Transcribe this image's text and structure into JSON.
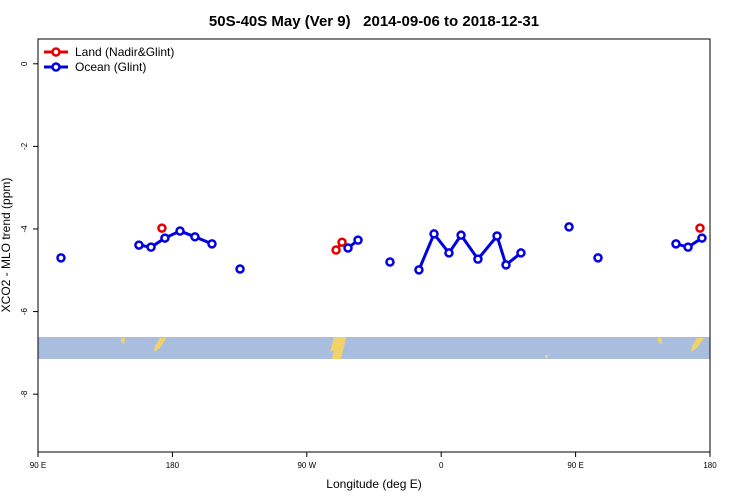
{
  "chart_data": {
    "type": "line",
    "title": "50S-40S May (Ver 9)   2014-09-06 to 2018-12-31",
    "x_label": "Longitude (deg E)",
    "y_label": "XCO2 - MLO trend (ppm)",
    "xlim": [
      90,
      540
    ],
    "ylim": [
      -9.4,
      0.6
    ],
    "xticks": [
      {
        "value": 90,
        "label": "90 E"
      },
      180,
      {
        "value": 270,
        "label": "90 W"
      },
      {
        "value": 360,
        "label": "0"
      },
      {
        "value": 450,
        "label": "90 E"
      },
      {
        "value": 540,
        "label": "180"
      }
    ],
    "yticks": [
      0,
      -2,
      -4,
      -6,
      -8
    ],
    "legend": "top-left",
    "series": [
      {
        "name": "Land (Nadir&Glint)",
        "color": "#e00000",
        "x": [
          173.0,
          null,
          289.6,
          293.6,
          null,
          533.3
        ],
        "values": [
          -3.98,
          null,
          -4.51,
          -4.32,
          null,
          -3.98
        ]
      },
      {
        "name": "Ocean (Glint)",
        "color": "#0000e0",
        "x": [
          105.4,
          null,
          157.6,
          165.7,
          175.0,
          185.1,
          195.1,
          206.5,
          null,
          225.3,
          null,
          297.6,
          304.3,
          null,
          325.7,
          null,
          345.1,
          355.2,
          365.2,
          373.3,
          384.6,
          397.4,
          403.4,
          413.4,
          null,
          445.6,
          null,
          465.0,
          null,
          517.2,
          525.3,
          534.6
        ],
        "values": [
          -4.7,
          null,
          -4.39,
          -4.44,
          -4.22,
          -4.05,
          -4.19,
          -4.36,
          null,
          -4.97,
          null,
          -4.46,
          -4.27,
          null,
          -4.8,
          null,
          -4.99,
          -4.12,
          -4.58,
          -4.15,
          -4.73,
          -4.17,
          -4.87,
          -4.58,
          null,
          -3.95,
          null,
          -4.7,
          null,
          -4.36,
          -4.44,
          -4.22
        ]
      }
    ]
  }
}
